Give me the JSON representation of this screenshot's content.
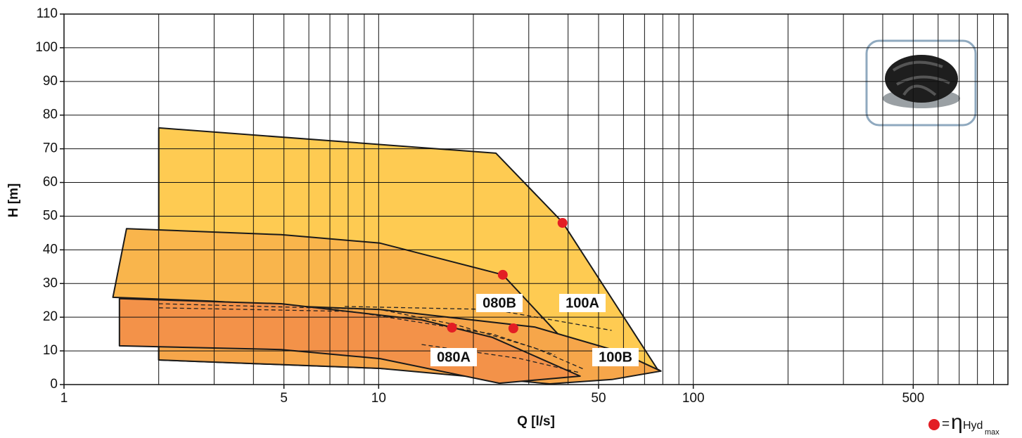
{
  "chart_data": {
    "type": "area-regions",
    "xlabel": "Q [l/s]",
    "ylabel": "H [m]",
    "xscale": "log",
    "xlim": [
      1,
      1000
    ],
    "ylim": [
      0,
      110
    ],
    "xticks": [
      1,
      5,
      10,
      50,
      100,
      500
    ],
    "xgrid": [
      1,
      2,
      3,
      4,
      5,
      6,
      7,
      8,
      9,
      10,
      20,
      30,
      40,
      50,
      60,
      70,
      80,
      90,
      100,
      200,
      300,
      400,
      500,
      600,
      700,
      800,
      900,
      1000
    ],
    "yticks": [
      0,
      10,
      20,
      30,
      40,
      50,
      60,
      70,
      80,
      90,
      100,
      110
    ],
    "grid": true,
    "series": [
      {
        "name": "100A",
        "color": "#fecb52",
        "x": [
          2.0,
          23.6,
          38.4,
          76.9,
          78.9,
          35.0,
          24.2,
          10.1,
          2.0
        ],
        "values": [
          76.2,
          68.7,
          48.2,
          4.6,
          4.0,
          0.2,
          2.5,
          4.8,
          7.3
        ]
      },
      {
        "name": "080B",
        "color": "#f9b54c",
        "x": [
          1.58,
          4.9,
          10.1,
          24.8,
          47.2,
          35.0,
          17.7,
          8.2,
          2.93,
          1.43
        ],
        "values": [
          46.3,
          44.5,
          42.0,
          32.6,
          4.6,
          0.2,
          9.8,
          22.3,
          24.8,
          25.9
        ]
      },
      {
        "name": "100B",
        "color": "#f6a64a",
        "x": [
          2.0,
          10.1,
          31.3,
          58.0,
          78.9,
          55.1,
          35.0,
          10.1,
          2.0
        ],
        "values": [
          24.8,
          22.3,
          17.1,
          9.8,
          4.0,
          1.5,
          0.2,
          4.8,
          7.3
        ]
      },
      {
        "name": "080A",
        "color": "#f39249",
        "x": [
          1.5,
          4.9,
          13.7,
          23.0,
          43.7,
          24.2,
          10.1,
          4.9,
          1.5
        ],
        "values": [
          25.5,
          24.0,
          19.2,
          14.0,
          2.5,
          0.4,
          7.7,
          10.4,
          11.5
        ]
      }
    ],
    "dashed_curves": [
      {
        "x": [
          2.0,
          10.1,
          17.7,
          31.3,
          44.8
        ],
        "values": [
          24.0,
          22.3,
          17.7,
          10.9,
          4.6
        ]
      },
      {
        "x": [
          2.0,
          8.2,
          23.0,
          36.4
        ],
        "values": [
          22.8,
          21.7,
          15.0,
          8.8
        ]
      },
      {
        "x": [
          7.8,
          23.0,
          55.0
        ],
        "values": [
          23.2,
          22.3,
          16.1
        ]
      },
      {
        "x": [
          13.7,
          28.2,
          43.7
        ],
        "values": [
          11.9,
          7.7,
          3.5
        ]
      }
    ],
    "points": {
      "color": "#e31e24",
      "x": [
        38.4,
        24.8,
        17.1,
        26.8
      ],
      "values": [
        48.0,
        32.6,
        16.9,
        16.7
      ]
    },
    "legend": {
      "equals": "=",
      "symbol": "η",
      "label": "Hyd",
      "subscript": "max"
    }
  }
}
